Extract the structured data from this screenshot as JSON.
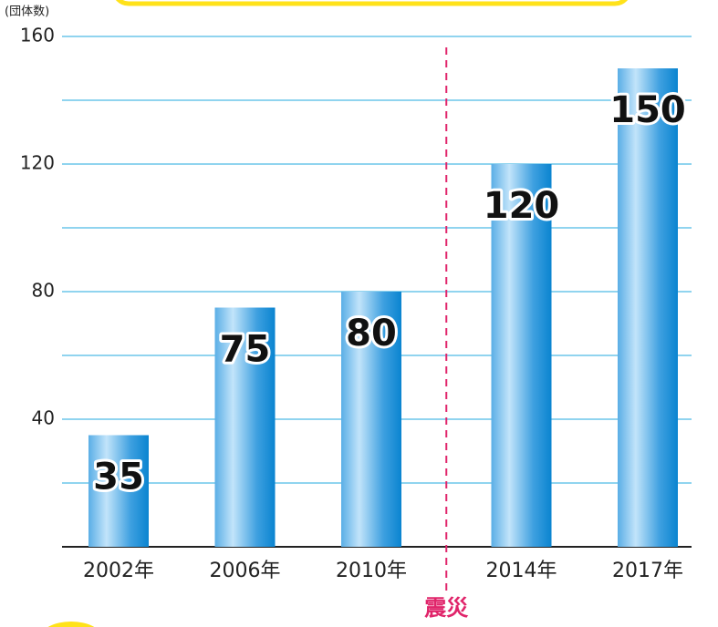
{
  "chart_data": {
    "type": "bar",
    "unit_label": "(団体数)",
    "categories": [
      "2002年",
      "2006年",
      "2010年",
      "2014年",
      "2017年"
    ],
    "values": [
      35,
      75,
      80,
      120,
      150
    ],
    "ylim": [
      0,
      160
    ],
    "yticks": [
      40,
      80,
      120,
      160
    ],
    "minor_grid": [
      20,
      60,
      100,
      140
    ],
    "grid": true,
    "color": "#1a8fd8",
    "annotation": "震災"
  }
}
